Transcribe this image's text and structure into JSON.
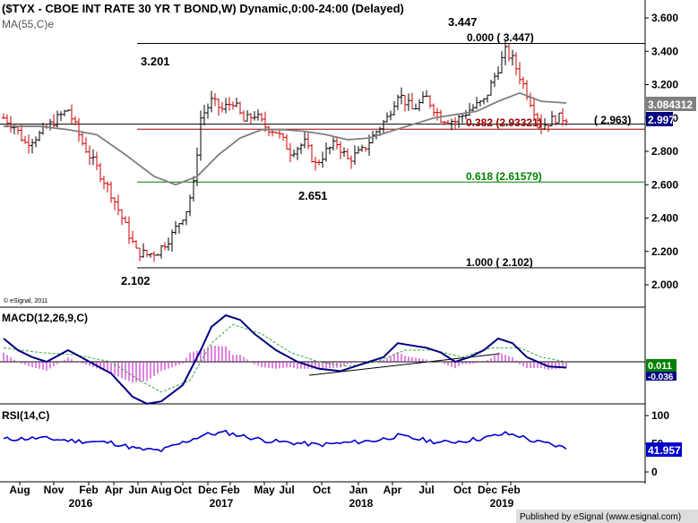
{
  "header": {
    "title": "($TYX - CBOE INT RATE 30 YR T BOND,W) Dynamic,0:00-24:00 (Delayed)",
    "ma_label": "MA(55,C)e",
    "copyright": "© eSignal, 2011"
  },
  "colors": {
    "up_bar": "#000000",
    "down_bar": "#cc0000",
    "ma_line": "#808080",
    "fib_red": "#990000",
    "fib_green": "#008000",
    "macd_line": "#000080",
    "signal_line": "#33aa33",
    "histogram": "#cc33cc",
    "rsi_line": "#0000cc",
    "current_box": "#000080",
    "ma_box": "#808080"
  },
  "chart_data": [
    {
      "type": "ohlc",
      "panel": "price",
      "ylim": [
        1.95,
        3.7
      ],
      "y_ticks": [
        "2.000",
        "2.200",
        "2.400",
        "2.600",
        "2.800",
        "3.000",
        "3.200",
        "3.400",
        "3.600"
      ],
      "x_labels": [
        "Aug",
        "Nov",
        "Feb",
        "Apr",
        "Jun",
        "Aug",
        "Oct",
        "Dec",
        "Feb",
        "May",
        "Jul",
        "Oct",
        "Jan",
        "Apr",
        "Jul",
        "Oct",
        "Dec",
        "Feb"
      ],
      "year_labels": [
        "2016",
        "2017",
        "2018",
        "2019"
      ],
      "price_path": [
        [
          0,
          3.0
        ],
        [
          3,
          2.95
        ],
        [
          6,
          2.85
        ],
        [
          10,
          2.9
        ],
        [
          14,
          2.98
        ],
        [
          18,
          3.05
        ],
        [
          22,
          2.85
        ],
        [
          26,
          2.7
        ],
        [
          30,
          2.55
        ],
        [
          34,
          2.35
        ],
        [
          37,
          2.2
        ],
        [
          40,
          2.18
        ],
        [
          43,
          2.2
        ],
        [
          47,
          2.3
        ],
        [
          51,
          2.45
        ],
        [
          53,
          2.6
        ],
        [
          55,
          3.0
        ],
        [
          58,
          3.1
        ],
        [
          61,
          3.05
        ],
        [
          64,
          3.1
        ],
        [
          67,
          2.98
        ],
        [
          70,
          3.02
        ],
        [
          73,
          2.95
        ],
        [
          76,
          2.92
        ],
        [
          80,
          2.8
        ],
        [
          84,
          2.85
        ],
        [
          87,
          2.72
        ],
        [
          90,
          2.8
        ],
        [
          93,
          2.85
        ],
        [
          96,
          2.75
        ],
        [
          100,
          2.8
        ],
        [
          104,
          2.92
        ],
        [
          107,
          3.0
        ],
        [
          110,
          3.15
        ],
        [
          114,
          3.05
        ],
        [
          118,
          3.12
        ],
        [
          122,
          3.0
        ],
        [
          126,
          2.98
        ],
        [
          130,
          3.05
        ],
        [
          134,
          3.1
        ],
        [
          138,
          3.3
        ],
        [
          140,
          3.4
        ],
        [
          142,
          3.35
        ],
        [
          144,
          3.25
        ],
        [
          147,
          3.1
        ],
        [
          150,
          2.95
        ],
        [
          154,
          3.0
        ],
        [
          157,
          3.0
        ]
      ],
      "ma_path": [
        [
          0,
          2.95
        ],
        [
          10,
          2.95
        ],
        [
          18,
          2.93
        ],
        [
          26,
          2.9
        ],
        [
          34,
          2.78
        ],
        [
          42,
          2.65
        ],
        [
          48,
          2.6
        ],
        [
          54,
          2.65
        ],
        [
          60,
          2.78
        ],
        [
          66,
          2.88
        ],
        [
          72,
          2.93
        ],
        [
          78,
          2.93
        ],
        [
          84,
          2.92
        ],
        [
          90,
          2.9
        ],
        [
          96,
          2.87
        ],
        [
          102,
          2.88
        ],
        [
          108,
          2.92
        ],
        [
          114,
          2.96
        ],
        [
          120,
          3.0
        ],
        [
          126,
          3.02
        ],
        [
          132,
          3.04
        ],
        [
          138,
          3.1
        ],
        [
          144,
          3.15
        ],
        [
          150,
          3.1
        ],
        [
          157,
          3.09
        ]
      ],
      "annotations": {
        "high_label": "3.447",
        "low_label": "2.102",
        "left_level_label": "3.201",
        "mid_low_label": "2.651",
        "fib_0": "0.000 ( 3.447)",
        "fib_382": "0.382 (2.93321)",
        "fib_618": "0.618 (2.61579)",
        "fib_100": "1.000 ( 2.102)",
        "support_label": "( 2.963)"
      },
      "levels": {
        "fib_0": 3.447,
        "fib_382": 2.93321,
        "fib_618": 2.61579,
        "fib_100": 2.102,
        "support": 2.963
      },
      "current_value": "2.997",
      "ma_value": "3.084312"
    },
    {
      "type": "line",
      "panel": "macd",
      "label": "MACD(12,26,9,C)",
      "ylim": [
        -0.2,
        0.2
      ],
      "macd_path": [
        [
          0,
          0.1
        ],
        [
          4,
          0.05
        ],
        [
          8,
          0.02
        ],
        [
          12,
          0.0
        ],
        [
          18,
          0.05
        ],
        [
          24,
          0.0
        ],
        [
          30,
          -0.05
        ],
        [
          36,
          -0.15
        ],
        [
          40,
          -0.18
        ],
        [
          44,
          -0.17
        ],
        [
          50,
          -0.1
        ],
        [
          55,
          0.05
        ],
        [
          58,
          0.15
        ],
        [
          62,
          0.2
        ],
        [
          66,
          0.18
        ],
        [
          70,
          0.12
        ],
        [
          76,
          0.05
        ],
        [
          82,
          0.0
        ],
        [
          88,
          -0.03
        ],
        [
          94,
          -0.04
        ],
        [
          98,
          -0.02
        ],
        [
          102,
          0.0
        ],
        [
          106,
          0.02
        ],
        [
          110,
          0.08
        ],
        [
          114,
          0.07
        ],
        [
          118,
          0.06
        ],
        [
          122,
          0.04
        ],
        [
          126,
          0.0
        ],
        [
          130,
          0.02
        ],
        [
          134,
          0.05
        ],
        [
          138,
          0.1
        ],
        [
          142,
          0.08
        ],
        [
          146,
          0.02
        ],
        [
          152,
          -0.02
        ],
        [
          157,
          -0.025
        ]
      ],
      "signal_path": [
        [
          0,
          0.06
        ],
        [
          10,
          0.04
        ],
        [
          20,
          0.03
        ],
        [
          30,
          0.0
        ],
        [
          38,
          -0.08
        ],
        [
          44,
          -0.13
        ],
        [
          52,
          -0.08
        ],
        [
          58,
          0.08
        ],
        [
          64,
          0.16
        ],
        [
          72,
          0.12
        ],
        [
          80,
          0.04
        ],
        [
          88,
          0.0
        ],
        [
          96,
          -0.02
        ],
        [
          104,
          0.0
        ],
        [
          112,
          0.05
        ],
        [
          120,
          0.05
        ],
        [
          128,
          0.02
        ],
        [
          136,
          0.06
        ],
        [
          144,
          0.06
        ],
        [
          150,
          0.02
        ],
        [
          157,
          0.0
        ]
      ],
      "value": "0.011",
      "value2": "-0.036"
    },
    {
      "type": "line",
      "panel": "rsi",
      "label": "RSI(14,C)",
      "y_ticks": [
        "100",
        "50",
        "0"
      ],
      "rsi_path": [
        [
          0,
          58
        ],
        [
          10,
          60
        ],
        [
          20,
          55
        ],
        [
          30,
          52
        ],
        [
          38,
          40
        ],
        [
          44,
          38
        ],
        [
          50,
          52
        ],
        [
          56,
          66
        ],
        [
          62,
          70
        ],
        [
          68,
          62
        ],
        [
          74,
          55
        ],
        [
          80,
          52
        ],
        [
          88,
          48
        ],
        [
          96,
          52
        ],
        [
          104,
          56
        ],
        [
          110,
          64
        ],
        [
          116,
          58
        ],
        [
          122,
          52
        ],
        [
          128,
          55
        ],
        [
          134,
          60
        ],
        [
          140,
          68
        ],
        [
          144,
          64
        ],
        [
          148,
          54
        ],
        [
          152,
          50
        ],
        [
          157,
          42
        ]
      ],
      "value": "41.957"
    }
  ],
  "footer": {
    "published_by": "Published by eSignal (www.esignal.com)"
  }
}
